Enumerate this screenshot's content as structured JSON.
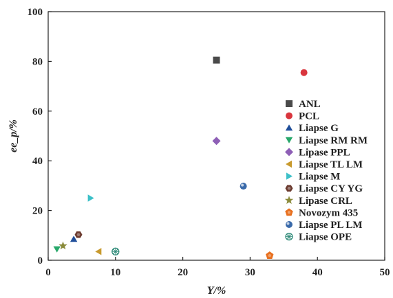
{
  "chart_data": {
    "type": "scatter",
    "xlabel": "Y/%",
    "ylabel": "ee_p/%",
    "xlim": [
      0,
      50
    ],
    "ylim": [
      0,
      100
    ],
    "x_ticks": [
      "0",
      "10",
      "20",
      "30",
      "40",
      "50"
    ],
    "y_ticks": [
      "0",
      "20",
      "40",
      "60",
      "80",
      "100"
    ],
    "grid": false,
    "legend_position": "right",
    "series": [
      {
        "name": "ANL",
        "marker": "square",
        "color": "#4a4a4a",
        "points": [
          {
            "x": 25.0,
            "y": 80.5
          }
        ]
      },
      {
        "name": "PCL",
        "marker": "circle",
        "color": "#d9363e",
        "points": [
          {
            "x": 38.0,
            "y": 75.5
          }
        ]
      },
      {
        "name": "Liapse G",
        "marker": "triangle-up",
        "color": "#1f4e9a",
        "points": [
          {
            "x": 3.8,
            "y": 8.5
          }
        ]
      },
      {
        "name": "Liapse RM RM",
        "marker": "triangle-down",
        "color": "#27a86a",
        "points": [
          {
            "x": 1.3,
            "y": 4.5
          }
        ]
      },
      {
        "name": "Lipase PPL",
        "marker": "diamond",
        "color": "#8e5fb6",
        "points": [
          {
            "x": 25.0,
            "y": 48.0
          }
        ]
      },
      {
        "name": "Liapse TL LM",
        "marker": "triangle-left",
        "color": "#c89a2e",
        "points": [
          {
            "x": 7.5,
            "y": 3.5
          }
        ]
      },
      {
        "name": "Liapse M",
        "marker": "triangle-right",
        "color": "#3cc0c8",
        "points": [
          {
            "x": 6.3,
            "y": 25.0
          }
        ]
      },
      {
        "name": "Liapse CY YG",
        "marker": "hexagon",
        "color": "#6b3a2e",
        "points": [
          {
            "x": 4.5,
            "y": 10.3
          }
        ]
      },
      {
        "name": "Lipase CRL",
        "marker": "star",
        "color": "#8a8a3a",
        "points": [
          {
            "x": 2.2,
            "y": 5.8
          }
        ]
      },
      {
        "name": "Novozym 435",
        "marker": "pentagon",
        "color": "#e8701f",
        "points": [
          {
            "x": 32.9,
            "y": 1.9
          }
        ]
      },
      {
        "name": "Liapse PL LM",
        "marker": "sphere",
        "color": "#3a6aaa",
        "points": [
          {
            "x": 29.0,
            "y": 29.8
          }
        ]
      },
      {
        "name": "Liapse OPE",
        "marker": "crossed-circle",
        "color": "#2e8a78",
        "points": [
          {
            "x": 10.0,
            "y": 3.5
          }
        ]
      }
    ]
  }
}
